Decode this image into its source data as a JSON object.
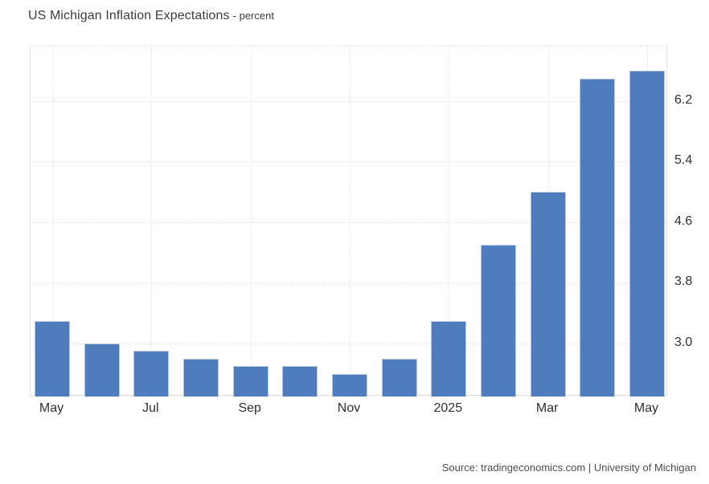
{
  "title": "US Michigan Inflation Expectations",
  "title_suffix": "- percent",
  "source": "Source: tradingeconomics.com | University of Michigan",
  "colors": {
    "background": "#ffffff",
    "bar_fill": "#4e7cbc",
    "bar_edge": "#b6c9df",
    "gridline": "#e3e3e3",
    "axis_label": "#2f2f2f",
    "title": "#3c3c3c",
    "source_text": "#4d4d4d"
  },
  "chart_data": {
    "type": "bar",
    "title": "US Michigan Inflation Expectations",
    "ylabel": "percent",
    "x": [
      "May 2024",
      "Jun 2024",
      "Jul 2024",
      "Aug 2024",
      "Sep 2024",
      "Oct 2024",
      "Nov 2024",
      "Dec 2024",
      "Jan 2025",
      "Feb 2025",
      "Mar 2025",
      "Apr 2025",
      "May 2025"
    ],
    "values": [
      3.3,
      3.0,
      2.9,
      2.8,
      2.7,
      2.7,
      2.6,
      2.8,
      3.3,
      4.3,
      5.0,
      6.5,
      6.6
    ],
    "x_tick_labels": [
      "May",
      "Jul",
      "Sep",
      "Nov",
      "2025",
      "Mar",
      "May"
    ],
    "x_tick_indices": [
      0,
      2,
      4,
      6,
      8,
      10,
      12
    ],
    "y_ticks": [
      6.2,
      5.4,
      4.6,
      3.8,
      3.0
    ],
    "y_tick_side": "right",
    "ylim": [
      2.3,
      6.93
    ],
    "grid": "dotted",
    "legend": "none"
  }
}
